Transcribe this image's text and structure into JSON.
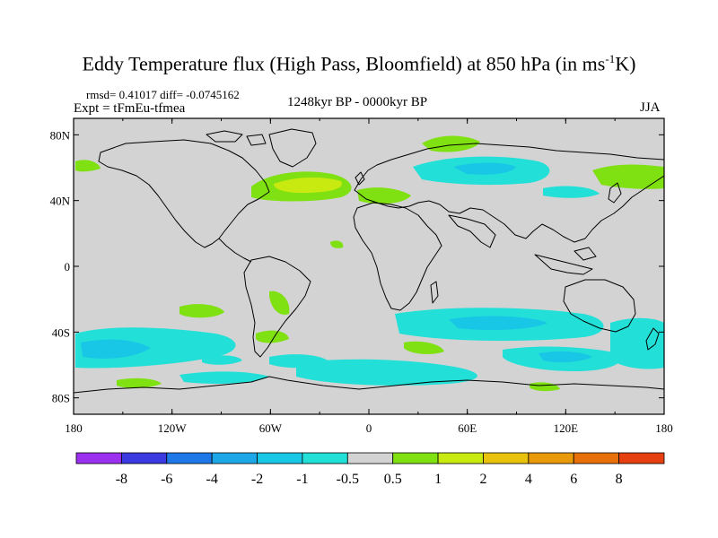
{
  "title": {
    "main": "Eddy Temperature flux (High Pass, Bloomfield) at 850 hPa (in ms",
    "superscript": "-1",
    "suffix": "K)"
  },
  "stats": "rmsd= 0.41017 diff= -0.0745162",
  "expt": "Expt = tFmEu-tfmea",
  "period": "1248kyr BP - 0000kyr BP",
  "season": "JJA",
  "axes": {
    "lon_labels": [
      "180",
      "120W",
      "60W",
      "0",
      "60E",
      "120E",
      "180"
    ],
    "lat_labels": [
      "80N",
      "40N",
      "0",
      "40S",
      "80S"
    ]
  },
  "colorbar": {
    "labels": [
      "-8",
      "-6",
      "-4",
      "-2",
      "-1",
      "-0.5",
      "0.5",
      "1",
      "2",
      "4",
      "6",
      "8"
    ],
    "colors": [
      "#9b30ef",
      "#3a3ae0",
      "#1e78e8",
      "#1ea7e6",
      "#18c6e6",
      "#22e0d8",
      "#d3d3d3",
      "#7fe012",
      "#c8ea10",
      "#e8c20c",
      "#e89a0a",
      "#e8700a",
      "#e64010"
    ]
  },
  "map_colors": {
    "ocean_land_bg": "#d3d3d3",
    "neg_light": "#22e0d8",
    "neg_mid": "#18c6e6",
    "pos_light": "#7fe012",
    "pos_mid": "#c8ea10",
    "coast": "#000000"
  }
}
